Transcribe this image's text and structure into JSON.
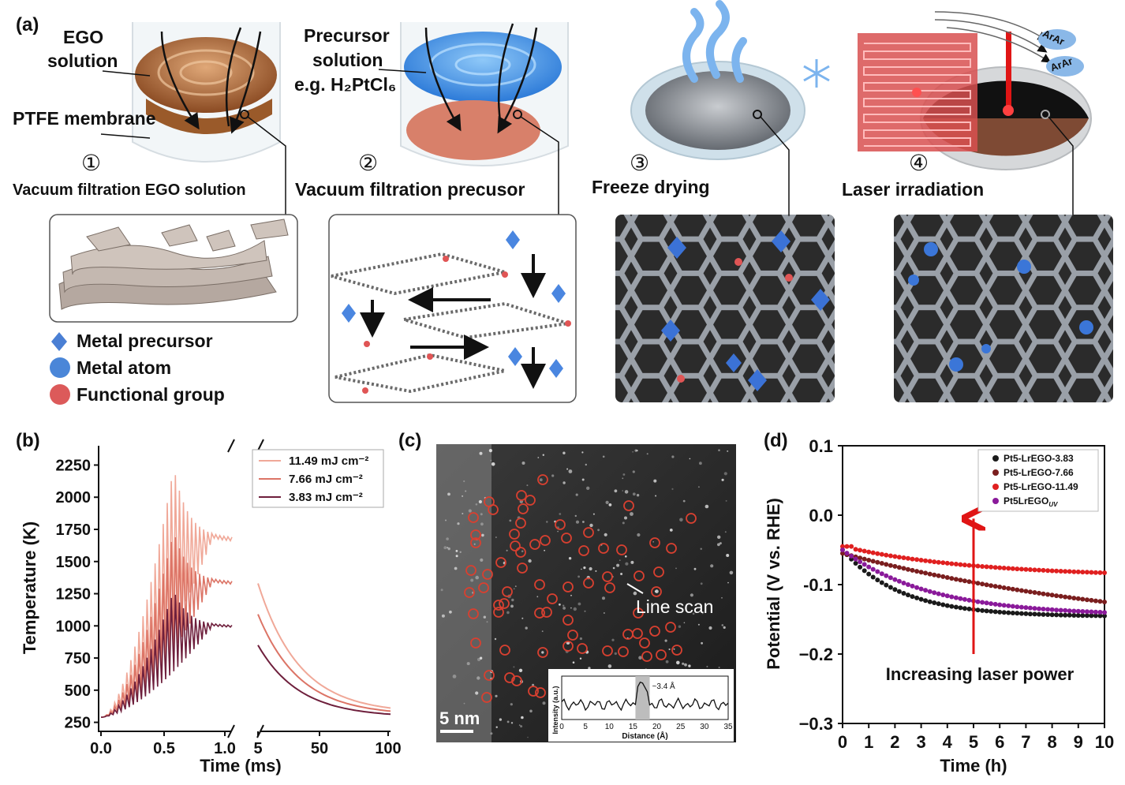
{
  "panel_a": {
    "label": "(a)",
    "step1": {
      "num": "①",
      "caption": "Vacuum filtration EGO solution",
      "ego_line1": "EGO",
      "ego_line2": "solution",
      "membrane": "PTFE membrane"
    },
    "step2": {
      "num": "②",
      "caption": "Vacuum filtration precusor",
      "prec_line1": "Precursor",
      "prec_line2": "solution",
      "prec_line3": "e.g. H₂PtCl₆"
    },
    "step3": {
      "num": "③",
      "caption": "Freeze drying"
    },
    "step4": {
      "num": "④",
      "caption": "Laser irradiation",
      "gas1": "ArAr",
      "gas2": "ArAr"
    },
    "legend": [
      {
        "label": "Metal precursor",
        "shape": "diamond",
        "color": "#4a7fd4"
      },
      {
        "label": "Metal atom",
        "shape": "circle",
        "color": "#4a86d8"
      },
      {
        "label": "Functional group",
        "shape": "circle",
        "color": "#dc5a5a"
      }
    ]
  },
  "panel_b": {
    "label": "(b)",
    "chart_data": {
      "type": "line",
      "ylabel": "Temperature (K)",
      "xlabel": "Time (ms)",
      "yticks": [
        250,
        500,
        750,
        1000,
        1250,
        1500,
        1750,
        2000,
        2250
      ],
      "xticks_left": [
        "0.0",
        "0.5",
        "1.0"
      ],
      "xticks_right": [
        "5",
        "50",
        "100"
      ],
      "ylim": [
        180,
        2400
      ],
      "series": [
        {
          "name": "11.49 mJ cm⁻²",
          "color": "#f0a898",
          "peak": 2230,
          "plateau": 1680,
          "decay_start": 1330,
          "decay_end": 320
        },
        {
          "name": "7.66 mJ cm⁻²",
          "color": "#dc7466",
          "peak": 1730,
          "plateau": 1340,
          "decay_start": 1090,
          "decay_end": 305
        },
        {
          "name": "3.83 mJ cm⁻²",
          "color": "#6e1f3c",
          "peak": 1270,
          "plateau": 1000,
          "decay_start": 850,
          "decay_end": 290
        }
      ]
    }
  },
  "panel_c": {
    "label": "(c)",
    "line_scan": "Line scan",
    "scale_bar": "5 nm",
    "inset": {
      "chart_data": {
        "type": "line",
        "xlabel": "Distance (Å)",
        "ylabel": "Intensity (a.u.)",
        "xticks": [
          "0",
          "5",
          "10",
          "15",
          "20",
          "25",
          "30",
          "35"
        ],
        "annotation": "~3.4 Å",
        "highlight_range": [
          15.5,
          18.5
        ]
      }
    }
  },
  "panel_d": {
    "label": "(d)",
    "annotation": "Increasing laser power",
    "chart_data": {
      "type": "scatter",
      "xlabel": "Time (h)",
      "ylabel": "Potential (V vs. RHE)",
      "xlim": [
        0,
        10
      ],
      "ylim": [
        -0.3,
        0.1
      ],
      "xticks": [
        "0",
        "1",
        "2",
        "3",
        "4",
        "5",
        "6",
        "7",
        "8",
        "9",
        "10"
      ],
      "yticks": [
        "0.1",
        "0.0",
        "-0.1",
        "−0.2",
        "−0.3"
      ],
      "series": [
        {
          "name": "Pt5-LrEGO-3.83",
          "color": "#1a1a1a",
          "start": -0.05,
          "end": -0.145,
          "shape": "fast"
        },
        {
          "name": "Pt5-LrEGO-7.66",
          "color": "#7a1e1e",
          "start": -0.055,
          "end": -0.125,
          "shape": "linear"
        },
        {
          "name": "Pt5-LrEGO-11.49",
          "color": "#e02020",
          "start": -0.045,
          "end": -0.083,
          "shape": "slow"
        },
        {
          "name": "Pt5LrEGO",
          "name_sub": "UV",
          "color": "#8a1a9a",
          "start": -0.05,
          "end": -0.14,
          "shape": "mid"
        }
      ]
    }
  }
}
